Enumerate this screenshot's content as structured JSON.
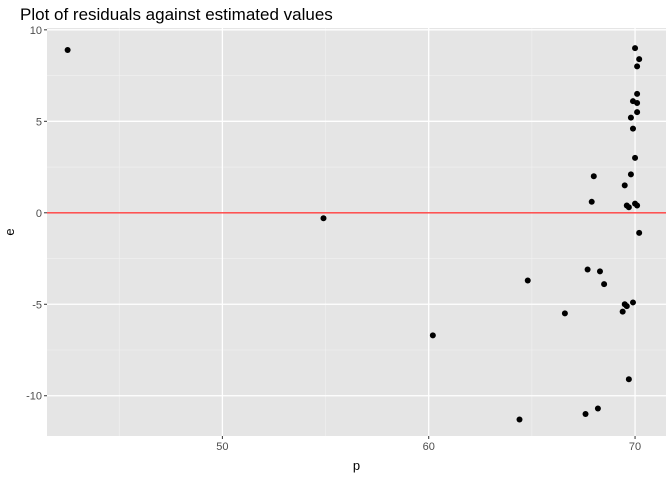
{
  "chart_data": {
    "type": "scatter",
    "title": "Plot of residuals against estimated values",
    "xlabel": "p",
    "ylabel": "e",
    "xlim": [
      41.5,
      71.5
    ],
    "ylim": [
      -12.2,
      10.1
    ],
    "x_ticks": [
      50,
      60,
      70
    ],
    "y_ticks": [
      -10,
      -5,
      0,
      5,
      10
    ],
    "x_tick_labels": [
      "50",
      "60",
      "70"
    ],
    "y_tick_labels": [
      "-10",
      "-5",
      "0",
      "5",
      "10"
    ],
    "grid": true,
    "reference_line": {
      "y": 0,
      "color": "#ff3b3b"
    },
    "point_color": "#000000",
    "panel_background": "#e5e5e5",
    "points": [
      {
        "x": 42.5,
        "y": 8.9
      },
      {
        "x": 54.9,
        "y": -0.3
      },
      {
        "x": 60.2,
        "y": -6.7
      },
      {
        "x": 64.4,
        "y": -11.3
      },
      {
        "x": 64.8,
        "y": -3.7
      },
      {
        "x": 66.6,
        "y": -5.5
      },
      {
        "x": 67.6,
        "y": -11.0
      },
      {
        "x": 67.7,
        "y": -3.1
      },
      {
        "x": 67.9,
        "y": 0.6
      },
      {
        "x": 68.0,
        "y": 2.0
      },
      {
        "x": 68.2,
        "y": -10.7
      },
      {
        "x": 68.3,
        "y": -3.2
      },
      {
        "x": 68.5,
        "y": -3.9
      },
      {
        "x": 69.4,
        "y": -5.4
      },
      {
        "x": 69.5,
        "y": 1.5
      },
      {
        "x": 69.5,
        "y": -5.0
      },
      {
        "x": 69.6,
        "y": -5.1
      },
      {
        "x": 69.6,
        "y": 0.4
      },
      {
        "x": 69.7,
        "y": -9.1
      },
      {
        "x": 69.7,
        "y": 0.3
      },
      {
        "x": 69.8,
        "y": 5.2
      },
      {
        "x": 69.8,
        "y": 2.1
      },
      {
        "x": 69.9,
        "y": 4.6
      },
      {
        "x": 69.9,
        "y": -4.9
      },
      {
        "x": 69.9,
        "y": 6.1
      },
      {
        "x": 70.0,
        "y": 9.0
      },
      {
        "x": 70.0,
        "y": 3.0
      },
      {
        "x": 70.0,
        "y": 0.5
      },
      {
        "x": 70.1,
        "y": 8.0
      },
      {
        "x": 70.1,
        "y": 6.5
      },
      {
        "x": 70.1,
        "y": 6.0
      },
      {
        "x": 70.1,
        "y": 5.5
      },
      {
        "x": 70.1,
        "y": 0.4
      },
      {
        "x": 70.2,
        "y": 8.4
      },
      {
        "x": 70.2,
        "y": -1.1
      }
    ]
  }
}
